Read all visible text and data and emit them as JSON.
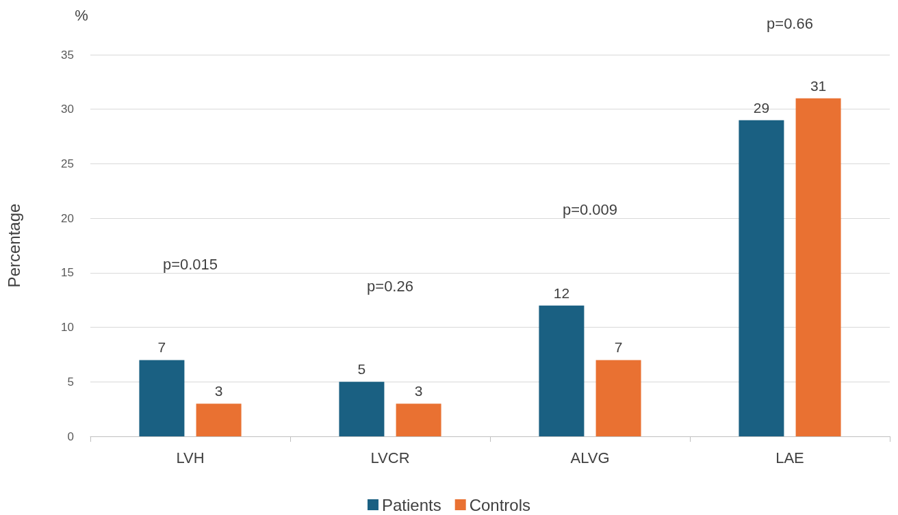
{
  "chart_data": {
    "type": "bar",
    "ylabel": "Percentage",
    "categories": [
      "LVH",
      "LVCR",
      "ALVG",
      "LAE"
    ],
    "series": [
      {
        "name": "Patients",
        "color": "#1a6082",
        "values": [
          7,
          5,
          12,
          29
        ]
      },
      {
        "name": "Controls",
        "color": "#e97132",
        "values": [
          3,
          3,
          7,
          31
        ]
      }
    ],
    "ylim": [
      0,
      35
    ],
    "yticks": [
      0,
      5,
      10,
      15,
      20,
      25,
      30,
      35
    ],
    "grid": "y",
    "legend": "bottom",
    "data_labels": true,
    "annotations": [
      "%",
      "p=0.015",
      "p=0.26",
      "p=0.009",
      "p=0.66"
    ]
  }
}
